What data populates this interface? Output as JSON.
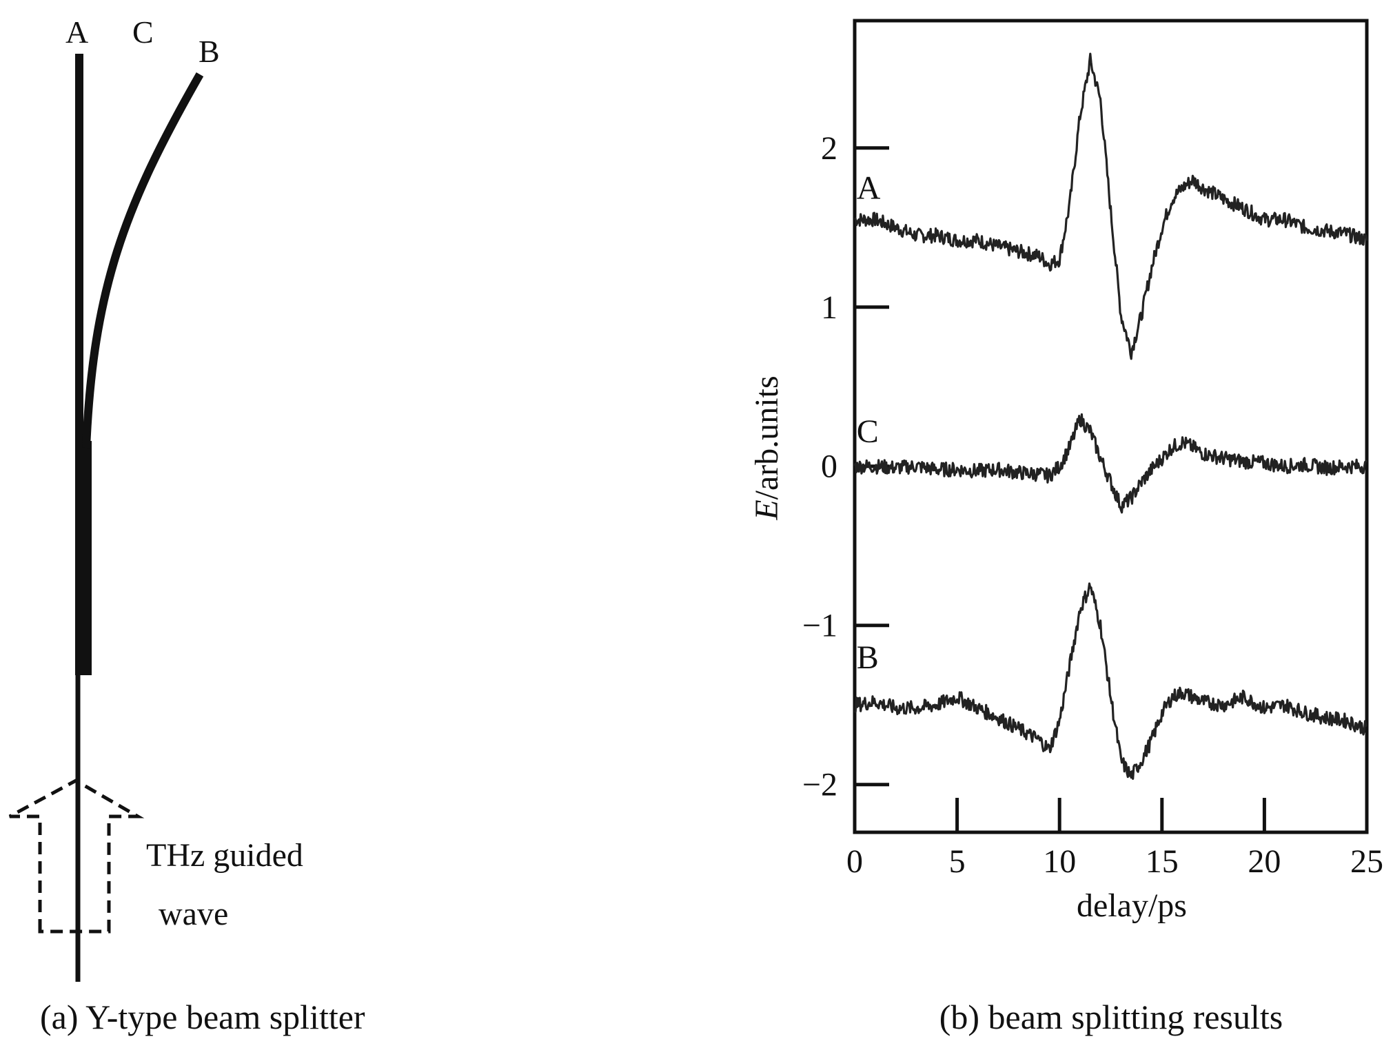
{
  "panel_a": {
    "caption": "(a) Y-type beam splitter",
    "branch_labels": {
      "a": "A",
      "c": "C",
      "b": "B"
    },
    "input_label_line1": "THz guided",
    "input_label_line2": "wave",
    "icon": "dashed-up-arrow-icon"
  },
  "panel_b": {
    "caption": "(b) beam splitting results"
  },
  "chart_data": {
    "type": "line",
    "xlabel": "delay/ps",
    "ylabel_italic": "E",
    "ylabel_rest": "/arb.units",
    "xlim": [
      0,
      25
    ],
    "ylim": [
      -2.3,
      2.8
    ],
    "x_ticks": [
      0,
      5,
      10,
      15,
      20,
      25
    ],
    "x_tick_labels": [
      "0",
      "5",
      "10",
      "15",
      "20",
      "25"
    ],
    "y_ticks": [
      2,
      1,
      0,
      -1,
      -2
    ],
    "y_tick_labels": [
      "2",
      "1",
      "0",
      "−1",
      "−2"
    ],
    "grid": false,
    "series": [
      {
        "name": "A",
        "label_pos": [
          1.1,
          1.75
        ],
        "x": [
          0,
          1,
          2,
          3,
          4,
          5,
          6,
          7,
          8,
          9,
          9.5,
          10,
          10.5,
          11,
          11.5,
          12,
          12.5,
          13,
          13.5,
          14,
          14.5,
          15,
          15.5,
          16,
          16.5,
          17,
          18,
          19,
          20,
          21,
          22,
          23,
          24,
          25
        ],
        "y": [
          1.55,
          1.55,
          1.5,
          1.45,
          1.45,
          1.42,
          1.42,
          1.38,
          1.35,
          1.32,
          1.27,
          1.3,
          1.65,
          2.2,
          2.55,
          2.3,
          1.6,
          0.95,
          0.72,
          0.95,
          1.25,
          1.5,
          1.68,
          1.75,
          1.8,
          1.75,
          1.68,
          1.62,
          1.55,
          1.55,
          1.5,
          1.48,
          1.46,
          1.42
        ]
      },
      {
        "name": "C",
        "label_pos": [
          1.1,
          0.22
        ],
        "x": [
          0,
          1,
          2,
          3,
          4,
          5,
          6,
          7,
          8,
          9,
          9.5,
          10,
          10.5,
          11,
          11.5,
          12,
          12.5,
          13,
          13.5,
          14,
          14.5,
          15,
          15.5,
          16,
          16.5,
          17,
          18,
          19,
          20,
          21,
          22,
          23,
          24,
          25
        ],
        "y": [
          0.0,
          0.0,
          -0.01,
          0.0,
          -0.02,
          -0.02,
          -0.03,
          -0.02,
          -0.04,
          -0.05,
          -0.06,
          0.0,
          0.12,
          0.3,
          0.22,
          0.05,
          -0.1,
          -0.25,
          -0.2,
          -0.1,
          -0.02,
          0.05,
          0.12,
          0.15,
          0.12,
          0.08,
          0.05,
          0.03,
          0.02,
          0.0,
          0.01,
          -0.01,
          0.0,
          0.0
        ]
      },
      {
        "name": "B",
        "label_pos": [
          1.1,
          -1.2
        ],
        "x": [
          0,
          1,
          2,
          3,
          4,
          5,
          6,
          7,
          8,
          9,
          9.5,
          10,
          10.5,
          11,
          11.5,
          12,
          12.5,
          13,
          13.5,
          14,
          14.5,
          15,
          15.5,
          16,
          16.5,
          17,
          18,
          19,
          20,
          21,
          22,
          23,
          24,
          25
        ],
        "y": [
          -1.5,
          -1.48,
          -1.52,
          -1.52,
          -1.5,
          -1.45,
          -1.52,
          -1.58,
          -1.65,
          -1.72,
          -1.78,
          -1.6,
          -1.25,
          -0.9,
          -0.75,
          -1.0,
          -1.45,
          -1.85,
          -1.95,
          -1.85,
          -1.72,
          -1.55,
          -1.45,
          -1.42,
          -1.45,
          -1.48,
          -1.5,
          -1.45,
          -1.52,
          -1.5,
          -1.55,
          -1.58,
          -1.6,
          -1.65
        ]
      }
    ]
  }
}
